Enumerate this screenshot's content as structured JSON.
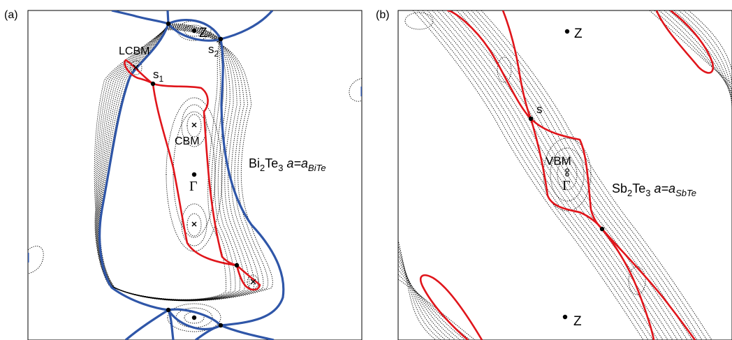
{
  "panels": [
    {
      "panel_label": "(a)",
      "points": {
        "z": "Z",
        "gamma": "Γ",
        "s1": "s",
        "s1_sub": "1",
        "s2": "s",
        "s2_sub": "2"
      },
      "labels": {
        "lcbm": "LCBM",
        "cbm": "CBM"
      },
      "material": {
        "e1": "Bi",
        "sub1": "2",
        "e2": "Te",
        "sub2": "3",
        "lattice": "a=a",
        "lattice_sub": "BiTe"
      },
      "colors": {
        "red": "#e0151b",
        "blue": "#2f56a8",
        "contour": "#000000"
      }
    },
    {
      "panel_label": "(b)",
      "points": {
        "z_top": "Z",
        "z_bottom": "Z",
        "gamma": "Γ",
        "s": "s"
      },
      "labels": {
        "vbm": "VBM"
      },
      "material": {
        "e1": "Sb",
        "sub1": "2",
        "e2": "Te",
        "sub2": "3",
        "lattice": "a=a",
        "lattice_sub": "SbTe"
      },
      "colors": {
        "red": "#e0151b",
        "contour": "#000000"
      }
    }
  ]
}
